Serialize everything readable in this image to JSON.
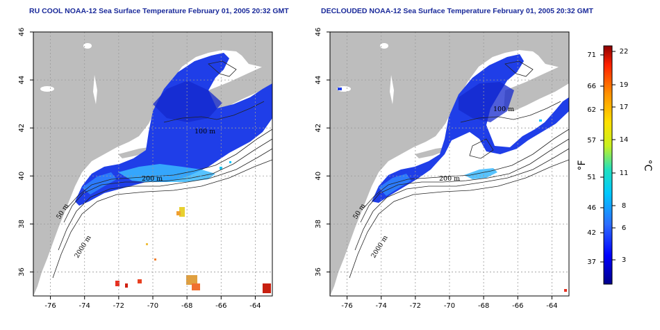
{
  "panels": [
    {
      "id": "left",
      "title": "RU COOL NOAA-12 Sea Surface Temperature February 01, 2005 20:32 GMT"
    },
    {
      "id": "right",
      "title": "DECLOUDED NOAA-12 Sea Surface Temperature February 01, 2005 20:32 GMT"
    }
  ],
  "map": {
    "lon_range": [
      -77,
      -63
    ],
    "lat_range": [
      35,
      46
    ],
    "lon_ticks": [
      "-76",
      "-74",
      "-72",
      "-70",
      "-68",
      "-66",
      "-64"
    ],
    "lat_ticks": [
      "36",
      "38",
      "40",
      "42",
      "44",
      "46"
    ],
    "grid": "dashed",
    "land_color": "#bdbdbd",
    "contour_labels": [
      "50 m",
      "100 m",
      "200 m",
      "2000 m"
    ]
  },
  "colorbar": {
    "fahrenheit_ticks": [
      "37",
      "42",
      "46",
      "51",
      "57",
      "62",
      "66",
      "71"
    ],
    "celsius_ticks": [
      "3",
      "6",
      "8",
      "11",
      "14",
      "17",
      "19",
      "22"
    ],
    "fahrenheit_unit": "°F",
    "celsius_unit": "°C",
    "colors": [
      "#00008b",
      "#0000ff",
      "#2c6cff",
      "#00c8ff",
      "#20e0c0",
      "#c8f020",
      "#ffe000",
      "#ff9000",
      "#ff2000",
      "#8b0000"
    ]
  }
}
